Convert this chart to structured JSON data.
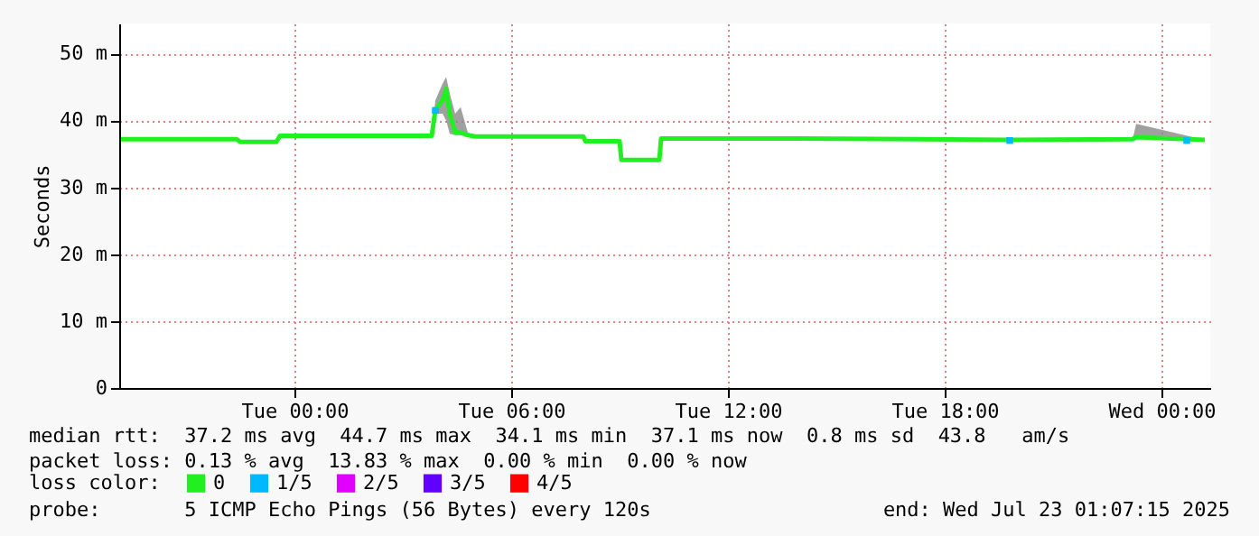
{
  "chart_data": {
    "type": "line",
    "ylabel": "Seconds",
    "legend_title": "loss color:",
    "xlim": [
      "2025-07-21T19:09",
      "2025-07-23T01:21"
    ],
    "xticks": [
      {
        "value": "2025-07-22T00:00",
        "label": "Tue 00:00"
      },
      {
        "value": "2025-07-22T06:00",
        "label": "Tue 06:00"
      },
      {
        "value": "2025-07-22T12:00",
        "label": "Tue 12:00"
      },
      {
        "value": "2025-07-22T18:00",
        "label": "Tue 18:00"
      },
      {
        "value": "2025-07-23T00:00",
        "label": "Wed 00:00"
      }
    ],
    "ylim": [
      0,
      54.5
    ],
    "yticks": [
      0,
      {
        "value": 10,
        "label": "10 m"
      },
      {
        "value": 20,
        "label": "20 m"
      },
      {
        "value": 30,
        "label": "30 m"
      },
      {
        "value": 40,
        "label": "40 m"
      },
      {
        "value": 50,
        "label": "50 m"
      }
    ],
    "grid": true,
    "legend": "bottom",
    "series": [
      {
        "name": "0",
        "color": "#20f020",
        "x": [
          "2025-07-21T19:12",
          "2025-07-21T21:00",
          "2025-07-21T22:24",
          "2025-07-21T22:30",
          "2025-07-21T23:30",
          "2025-07-21T23:36",
          "2025-07-22T03:48",
          "2025-07-22T03:54",
          "2025-07-22T04:06",
          "2025-07-22T04:12",
          "2025-07-22T04:18",
          "2025-07-22T04:27",
          "2025-07-22T04:36",
          "2025-07-22T04:48",
          "2025-07-22T05:00",
          "2025-07-22T08:00",
          "2025-07-22T08:03",
          "2025-07-22T09:00",
          "2025-07-22T09:03",
          "2025-07-22T10:06",
          "2025-07-22T10:09",
          "2025-07-22T14:00",
          "2025-07-22T19:48",
          "2025-07-22T23:12",
          "2025-07-22T23:18",
          "2025-07-23T01:12"
        ],
        "values": [
          37.2,
          37.2,
          37.2,
          36.8,
          36.8,
          37.7,
          37.7,
          41.5,
          43,
          44.7,
          41,
          38.2,
          38.2,
          37.8,
          37.6,
          37.6,
          36.9,
          36.9,
          34.1,
          34.1,
          37.3,
          37.3,
          37.1,
          37.2,
          37.5,
          37.1
        ],
        "lower": [
          37.2,
          37.2,
          37.2,
          36.8,
          36.8,
          37.7,
          37.7,
          41,
          41,
          40,
          38,
          37.8,
          37.8,
          37.7,
          37.6,
          37.6,
          36.9,
          36.9,
          34.1,
          34.1,
          37.3,
          37.3,
          37.1,
          37.2,
          37.2,
          37.1
        ],
        "upper": [
          37.2,
          37.2,
          37.2,
          36.8,
          36.8,
          37.7,
          37.7,
          43,
          45.5,
          46.5,
          44,
          41,
          42,
          38.2,
          37.6,
          37.6,
          36.9,
          36.9,
          34.1,
          34.1,
          37.3,
          37.3,
          37.1,
          37.2,
          39.5,
          37.1
        ]
      },
      {
        "name": "1/5",
        "type": "scatter",
        "color": "#00b8ff",
        "marker": "square",
        "x": [
          "2025-07-22T03:54",
          "2025-07-22T19:48",
          "2025-07-23T00:42"
        ],
        "values": [
          41.5,
          37,
          37
        ]
      },
      {
        "name": "2/5",
        "type": "scatter",
        "color": "#e000ff"
      },
      {
        "name": "3/5",
        "type": "scatter",
        "color": "#6000ff"
      },
      {
        "name": "4/5",
        "type": "scatter",
        "color": "#ff0000"
      }
    ],
    "annotations": [
      "median rtt:  37.2 ms avg  44.7 ms max  34.1 ms min  37.1 ms now  0.8 ms sd  43.8   am/s",
      "packet loss: 0.13 % avg  13.83 % max  0.00 % min  0.00 % now",
      "probe:       5 ICMP Echo Pings (56 Bytes) every 120s",
      "end: Wed Jul 23 01:07:15 2025"
    ]
  }
}
